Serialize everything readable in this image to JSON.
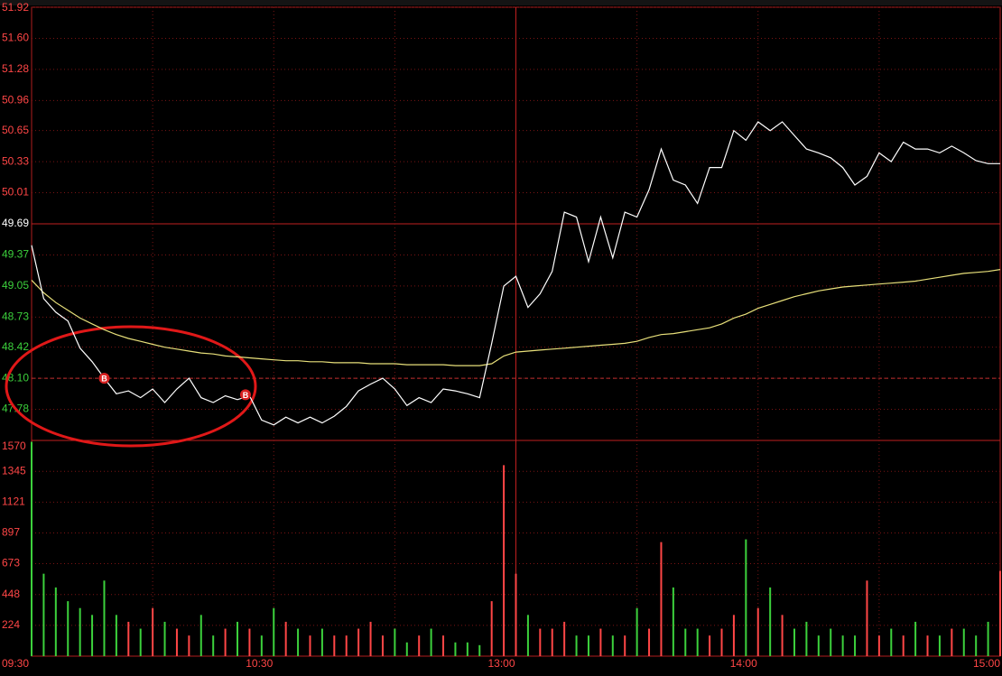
{
  "chart_data": {
    "type": "line",
    "x": [
      0,
      3,
      6,
      9,
      12,
      15,
      18,
      21,
      24,
      27,
      30,
      33,
      36,
      39,
      42,
      45,
      48,
      51,
      54,
      57,
      60,
      63,
      66,
      69,
      72,
      75,
      78,
      81,
      84,
      87,
      90,
      93,
      96,
      99,
      102,
      105,
      108,
      111,
      114,
      117,
      120,
      123,
      126,
      129,
      132,
      135,
      138,
      141,
      144,
      147,
      150,
      153,
      156,
      159,
      162,
      165,
      168,
      171,
      174,
      177,
      180,
      183,
      186,
      189,
      192,
      195,
      198,
      201,
      204,
      207,
      210,
      213,
      216,
      219,
      222,
      225,
      228,
      231,
      234,
      237,
      240
    ],
    "xlim": [
      0,
      240
    ],
    "xticks": [
      {
        "value": 0,
        "label": "09:30"
      },
      {
        "value": 60,
        "label": "10:30"
      },
      {
        "value": 120,
        "label": "13:00"
      },
      {
        "value": 180,
        "label": "14:00"
      },
      {
        "value": 240,
        "label": "15:00"
      }
    ],
    "ylim": [
      47.46,
      51.92
    ],
    "yticks": [
      {
        "value": 51.92,
        "label": "51.92"
      },
      {
        "value": 51.6,
        "label": "51.60"
      },
      51.28,
      50.96,
      50.65,
      50.33,
      50.01,
      49.69,
      49.37,
      49.05,
      48.73,
      48.42,
      {
        "value": 48.1,
        "label": "48.10"
      },
      47.78
    ],
    "prev_close": 49.69,
    "ref_line": 48.1,
    "grid": true,
    "series": [
      {
        "color": "#ffffff",
        "values": [
          49.47,
          48.92,
          48.78,
          48.69,
          48.41,
          48.27,
          48.1,
          47.94,
          47.97,
          47.9,
          47.99,
          47.85,
          47.99,
          48.1,
          47.9,
          47.85,
          47.92,
          47.88,
          47.92,
          47.67,
          47.62,
          47.7,
          47.64,
          47.7,
          47.64,
          47.71,
          47.81,
          47.97,
          48.04,
          48.1,
          47.99,
          47.82,
          47.9,
          47.85,
          47.99,
          47.97,
          47.94,
          47.9,
          48.46,
          49.05,
          49.15,
          48.83,
          48.97,
          49.2,
          49.81,
          49.76,
          49.3,
          49.76,
          49.34,
          49.81,
          49.76,
          50.04,
          50.46,
          50.14,
          50.09,
          49.9,
          50.27,
          50.27,
          50.65,
          50.55,
          50.74,
          50.65,
          50.74,
          50.6,
          50.46,
          50.42,
          50.37,
          50.27,
          50.09,
          50.18,
          50.42,
          50.33,
          50.53,
          50.46,
          50.46,
          50.42,
          50.49,
          50.42,
          50.34,
          50.31,
          50.31
        ]
      },
      {
        "color": "#e8e07a",
        "values": [
          49.11,
          48.98,
          48.88,
          48.8,
          48.72,
          48.66,
          48.6,
          48.55,
          48.51,
          48.48,
          48.45,
          48.42,
          48.4,
          48.38,
          48.36,
          48.35,
          48.33,
          48.32,
          48.31,
          48.3,
          48.29,
          48.28,
          48.28,
          48.27,
          48.27,
          48.26,
          48.26,
          48.26,
          48.25,
          48.25,
          48.25,
          48.24,
          48.24,
          48.24,
          48.24,
          48.23,
          48.23,
          48.23,
          48.25,
          48.33,
          48.37,
          48.38,
          48.39,
          48.4,
          48.41,
          48.42,
          48.43,
          48.44,
          48.45,
          48.46,
          48.48,
          48.52,
          48.55,
          48.56,
          48.58,
          48.6,
          48.62,
          48.66,
          48.72,
          48.76,
          48.82,
          48.86,
          48.9,
          48.94,
          48.97,
          49.0,
          49.02,
          49.04,
          49.05,
          49.06,
          49.07,
          49.08,
          49.09,
          49.1,
          49.12,
          49.14,
          49.16,
          49.18,
          49.19,
          49.2,
          49.22
        ]
      }
    ],
    "markers": [
      {
        "label": "B",
        "x": 18,
        "y": 48.1
      },
      {
        "label": "B",
        "x": 53,
        "y": 47.93
      }
    ],
    "volume": {
      "up_color": "#ff4646",
      "down_color": "#3cd13c",
      "ylim": [
        0,
        1570
      ],
      "yticks": [
        224,
        448,
        673,
        897,
        1121,
        1345,
        1570
      ],
      "values": [
        1560,
        600,
        500,
        400,
        350,
        300,
        550,
        300,
        250,
        200,
        350,
        250,
        200,
        150,
        300,
        150,
        200,
        250,
        200,
        150,
        350,
        250,
        200,
        150,
        200,
        150,
        150,
        200,
        250,
        150,
        200,
        100,
        150,
        200,
        150,
        100,
        100,
        80,
        400,
        1390,
        600,
        300,
        200,
        200,
        250,
        150,
        150,
        200,
        150,
        150,
        350,
        200,
        830,
        500,
        200,
        200,
        150,
        200,
        300,
        850,
        350,
        500,
        300,
        200,
        250,
        150,
        200,
        150,
        150,
        550,
        150,
        200,
        150,
        250,
        150,
        150,
        200,
        200,
        150,
        250,
        620
      ]
    }
  }
}
